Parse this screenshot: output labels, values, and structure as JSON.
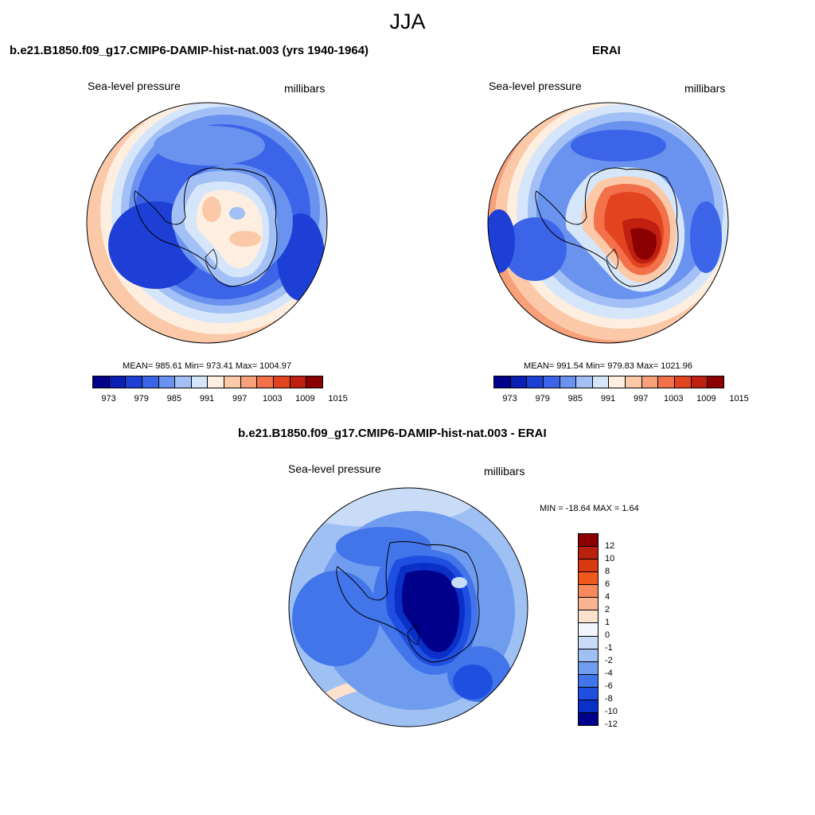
{
  "figure": {
    "title": "JJA"
  },
  "panels": {
    "model": {
      "title": "b.e21.B1850.f09_g17.CMIP6-DAMIP-hist-nat.003 (yrs 1940-1964)",
      "variable": "Sea-level pressure",
      "units": "millibars",
      "stats": "MEAN= 985.61  Min= 973.41  Max= 1004.97",
      "mean": 985.61,
      "min": 973.41,
      "max": 1004.97
    },
    "obs": {
      "title": "ERAI",
      "variable": "Sea-level pressure",
      "units": "millibars",
      "stats": "MEAN= 991.54  Min= 979.83  Max= 1021.96",
      "mean": 991.54,
      "min": 979.83,
      "max": 1021.96
    },
    "diff": {
      "title": "b.e21.B1850.f09_g17.CMIP6-DAMIP-hist-nat.003 - ERAI",
      "variable": "Sea-level pressure",
      "units": "millibars",
      "stats": "MIN = -18.64 MAX =   1.64",
      "min": -18.64,
      "max": 1.64
    }
  },
  "colorbar_abs": {
    "colors": [
      "#00008b",
      "#0a1fb4",
      "#1e3fd6",
      "#3c64e8",
      "#6a93ef",
      "#a2c0f5",
      "#d6e6fa",
      "#fdeee0",
      "#fbc9a8",
      "#f7a07a",
      "#f2704a",
      "#e34420",
      "#c02010",
      "#8b0000"
    ],
    "tick_labels": [
      "973",
      "979",
      "985",
      "991",
      "997",
      "1003",
      "1009",
      "1015"
    ],
    "tick_values": [
      973,
      979,
      985,
      991,
      997,
      1003,
      1009,
      1015
    ]
  },
  "colorbar_diff": {
    "colors": [
      "#8b0000",
      "#b82010",
      "#d83a10",
      "#f0581e",
      "#f78a5a",
      "#f9b48f",
      "#fce2cc",
      "#f1f5fd",
      "#c8dcf7",
      "#9fc0f3",
      "#6f9cef",
      "#4274ea",
      "#1f4fe0",
      "#0a30c8",
      "#00008b"
    ],
    "tick_labels": [
      "12",
      "10",
      "8",
      "6",
      "4",
      "2",
      "1",
      "0",
      "-1",
      "-2",
      "-4",
      "-6",
      "-8",
      "-10",
      "-12"
    ],
    "tick_values": [
      12,
      10,
      8,
      6,
      4,
      2,
      1,
      0,
      -1,
      -2,
      -4,
      -6,
      -8,
      -10,
      -12
    ]
  }
}
